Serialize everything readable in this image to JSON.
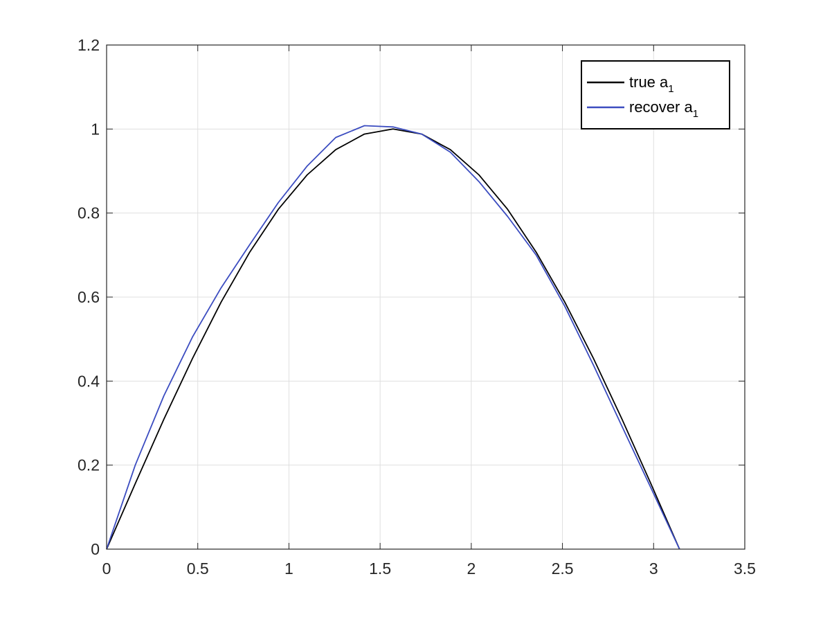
{
  "chart_data": {
    "type": "line",
    "title": "",
    "xlabel": "",
    "ylabel": "",
    "xlim": [
      0,
      3.5
    ],
    "ylim": [
      0,
      1.2
    ],
    "xticks": [
      0,
      0.5,
      1,
      1.5,
      2,
      2.5,
      3,
      3.5
    ],
    "xtick_labels": [
      "0",
      "0.5",
      "1",
      "1.5",
      "2",
      "2.5",
      "3",
      "3.5"
    ],
    "yticks": [
      0,
      0.2,
      0.4,
      0.6,
      0.8,
      1,
      1.2
    ],
    "ytick_labels": [
      "0",
      "0.2",
      "0.4",
      "0.6",
      "0.8",
      "1",
      "1.2"
    ],
    "grid": true,
    "legend_position": "top-right",
    "series": [
      {
        "name": "true a",
        "subscript": "1",
        "color": "#000000",
        "x": [
          0,
          0.157,
          0.314,
          0.471,
          0.628,
          0.785,
          0.942,
          1.1,
          1.257,
          1.414,
          1.571,
          1.728,
          1.885,
          2.042,
          2.199,
          2.356,
          2.513,
          2.67,
          2.827,
          2.985,
          3.142
        ],
        "y": [
          0,
          0.156,
          0.309,
          0.454,
          0.588,
          0.707,
          0.809,
          0.891,
          0.951,
          0.988,
          1.0,
          0.988,
          0.951,
          0.891,
          0.809,
          0.707,
          0.588,
          0.454,
          0.309,
          0.156,
          0
        ]
      },
      {
        "name": "recover a",
        "subscript": "1",
        "color": "#3b4cc0",
        "x": [
          0,
          0.157,
          0.314,
          0.471,
          0.628,
          0.785,
          0.942,
          1.1,
          1.257,
          1.414,
          1.571,
          1.728,
          1.885,
          2.042,
          2.199,
          2.356,
          2.513,
          2.67,
          2.827,
          2.985,
          3.142
        ],
        "y": [
          0,
          0.2,
          0.365,
          0.505,
          0.622,
          0.725,
          0.825,
          0.912,
          0.98,
          1.008,
          1.005,
          0.988,
          0.945,
          0.875,
          0.792,
          0.7,
          0.578,
          0.438,
          0.292,
          0.146,
          0
        ]
      }
    ]
  }
}
